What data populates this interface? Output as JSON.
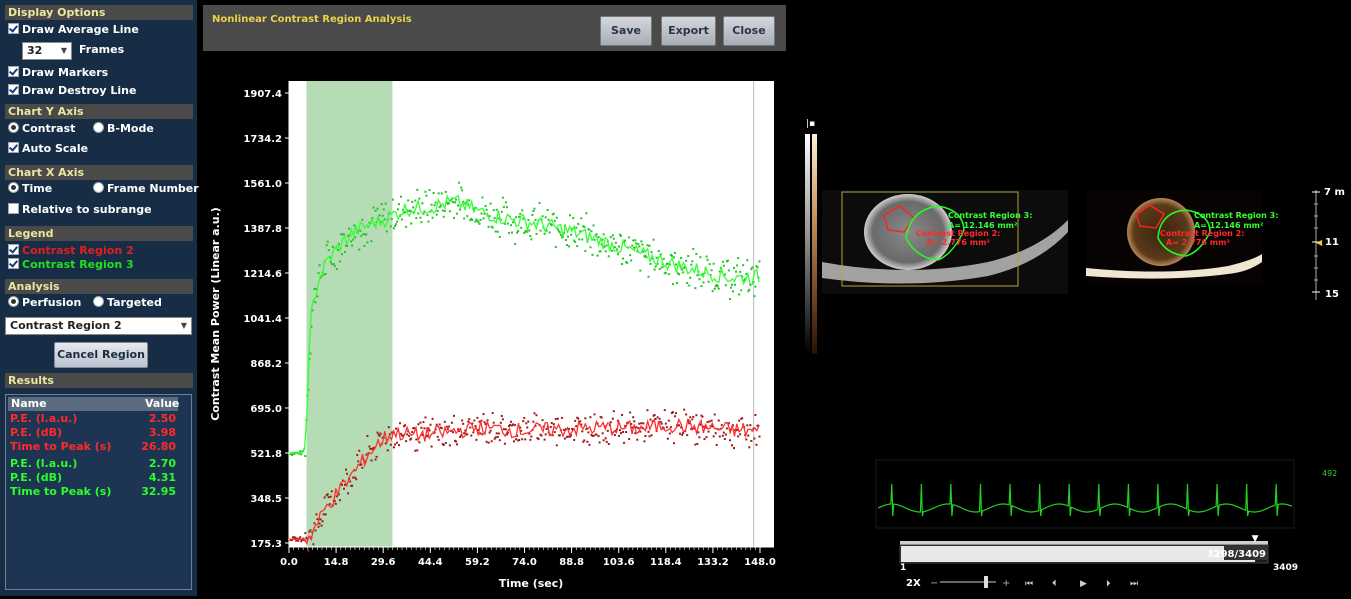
{
  "sidebar": {
    "display_options": {
      "header": "Display Options",
      "draw_average_line": "Draw Average Line",
      "frames_value": "32",
      "frames_label": "Frames",
      "draw_markers": "Draw Markers",
      "draw_destroy_line": "Draw Destroy Line"
    },
    "chart_y_axis": {
      "header": "Chart Y Axis",
      "contrast": "Contrast",
      "bmode": "B-Mode",
      "auto_scale": "Auto Scale"
    },
    "chart_x_axis": {
      "header": "Chart X Axis",
      "time": "Time",
      "frame_number": "Frame Number",
      "relative": "Relative to subrange"
    },
    "legend": {
      "header": "Legend",
      "items": [
        {
          "label": "Contrast Region 2",
          "color": "#e02020"
        },
        {
          "label": "Contrast Region 3",
          "color": "#20e020"
        }
      ]
    },
    "analysis": {
      "header": "Analysis",
      "perfusion": "Perfusion",
      "targeted": "Targeted",
      "region_select": "Contrast Region 2",
      "cancel_label": "Cancel Region"
    },
    "results": {
      "header": "Results",
      "col_name": "Name",
      "col_value": "Value",
      "rows": [
        {
          "name": "P.E. (l.a.u.)",
          "value": "2.50",
          "color": "#ff2a2a"
        },
        {
          "name": "P.E. (dB)",
          "value": "3.98",
          "color": "#ff2a2a"
        },
        {
          "name": "Time to Peak (s)",
          "value": "26.80",
          "color": "#ff2a2a"
        },
        {
          "name": "P.E. (l.a.u.)",
          "value": "2.70",
          "color": "#2aff2a"
        },
        {
          "name": "P.E. (dB)",
          "value": "4.31",
          "color": "#2aff2a"
        },
        {
          "name": "Time to Peak (s)",
          "value": "32.95",
          "color": "#2aff2a"
        }
      ]
    }
  },
  "chart_window": {
    "title": "Nonlinear Contrast Region Analysis",
    "save_label": "Save",
    "export_label": "Export",
    "close_label": "Close"
  },
  "chart_data": {
    "type": "scatter",
    "xlabel": "Time (sec)",
    "ylabel": "Contrast Mean Power (Linear a.u.)",
    "xlim": [
      0,
      148
    ],
    "ylim": [
      175.3,
      1907.4
    ],
    "x_ticks": [
      "0.0",
      "14.8",
      "29.6",
      "44.4",
      "59.2",
      "74.0",
      "88.8",
      "103.6",
      "118.4",
      "133.2",
      "148.0"
    ],
    "y_ticks": [
      "175.3",
      "348.5",
      "521.8",
      "695.0",
      "868.2",
      "1041.4",
      "1214.6",
      "1387.8",
      "1561.0",
      "1734.2",
      "1907.4"
    ],
    "highlight_range": [
      5.5,
      32.5
    ],
    "end_marker_x": 146,
    "series": [
      {
        "name": "Contrast Region 3",
        "color": "#22c422",
        "avg_color": "#33ff33",
        "points": [
          [
            0,
            521
          ],
          [
            4,
            521
          ],
          [
            5,
            540
          ],
          [
            6,
            800
          ],
          [
            7,
            1050
          ],
          [
            9,
            1180
          ],
          [
            12,
            1260
          ],
          [
            16,
            1320
          ],
          [
            20,
            1370
          ],
          [
            25,
            1400
          ],
          [
            30,
            1420
          ],
          [
            36,
            1460
          ],
          [
            45,
            1470
          ],
          [
            52,
            1490
          ],
          [
            60,
            1450
          ],
          [
            70,
            1420
          ],
          [
            80,
            1400
          ],
          [
            90,
            1370
          ],
          [
            100,
            1330
          ],
          [
            110,
            1290
          ],
          [
            120,
            1250
          ],
          [
            130,
            1220
          ],
          [
            140,
            1195
          ],
          [
            148,
            1200
          ]
        ]
      },
      {
        "name": "Contrast Region 2",
        "color": "#9e1a1a",
        "avg_color": "#ff3030",
        "points": [
          [
            0,
            190
          ],
          [
            6,
            190
          ],
          [
            8,
            230
          ],
          [
            12,
            320
          ],
          [
            16,
            380
          ],
          [
            20,
            440
          ],
          [
            25,
            520
          ],
          [
            30,
            580
          ],
          [
            33,
            600
          ],
          [
            40,
            590
          ],
          [
            50,
            600
          ],
          [
            60,
            620
          ],
          [
            70,
            610
          ],
          [
            80,
            610
          ],
          [
            90,
            615
          ],
          [
            100,
            620
          ],
          [
            110,
            615
          ],
          [
            120,
            630
          ],
          [
            130,
            620
          ],
          [
            140,
            610
          ],
          [
            148,
            605
          ]
        ]
      }
    ]
  },
  "ultrasound": {
    "roi3_name": "Contrast Region 3:",
    "roi3_area": "A= 12.146 mm²",
    "roi2_name": "Contrast Region 2:",
    "roi2_area": "A= 2.776 mm²",
    "depth_7": "7 m",
    "depth_11": "11",
    "depth_15": "15",
    "ecg_value": "492",
    "frame_counter": "3298/3409",
    "frame_start": "1",
    "frame_end": "3409",
    "zoom": "2X"
  }
}
